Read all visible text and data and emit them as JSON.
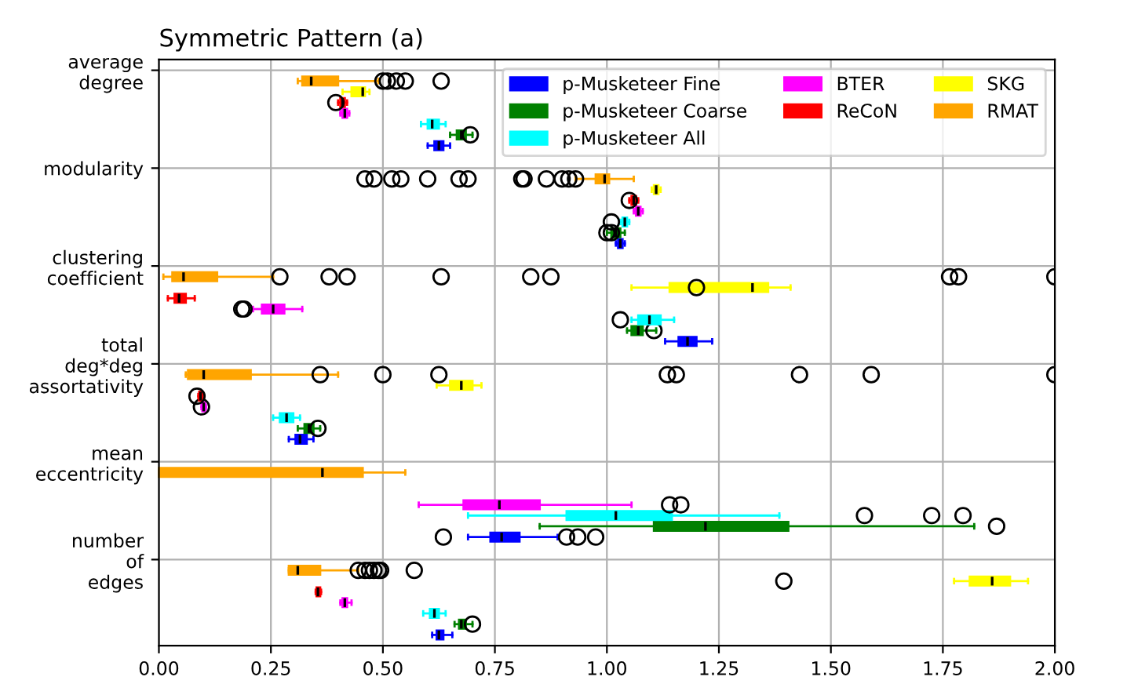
{
  "chart_data": {
    "type": "box",
    "orientation": "horizontal",
    "title": "Symmetric Pattern (a)",
    "categories": [
      "average\ndegree",
      "modularity",
      "clustering\ncoefficient",
      "total\ndeg*deg\nassortativity",
      "mean\neccentricity",
      "number\nof\nedges"
    ],
    "xlim": [
      0,
      2
    ],
    "xticks": [
      {
        "value": 0,
        "label": "0.00"
      },
      {
        "value": 0.25,
        "label": "0.25"
      },
      {
        "value": 0.5,
        "label": "0.50"
      },
      {
        "value": 0.75,
        "label": "0.75"
      },
      {
        "value": 1,
        "label": "1.00"
      },
      {
        "value": 1.25,
        "label": "1.25"
      },
      {
        "value": 1.5,
        "label": "1.50"
      },
      {
        "value": 1.75,
        "label": "1.75"
      },
      {
        "value": 2,
        "label": "2.00"
      }
    ],
    "grid": true,
    "legend": "top right",
    "series": [
      {
        "name": "p-Musketeer Fine",
        "color": "#0000ff",
        "boxes": [
          {
            "low": 0.6,
            "q1": 0.615,
            "median": 0.625,
            "q3": 0.635,
            "high": 0.65
          },
          {
            "low": 1.02,
            "q1": 1.025,
            "median": 1.03,
            "q3": 1.035,
            "high": 1.04
          },
          {
            "low": 1.13,
            "q1": 1.16,
            "median": 1.18,
            "q3": 1.2,
            "high": 1.235
          },
          {
            "low": 0.29,
            "q1": 0.305,
            "median": 0.315,
            "q3": 0.33,
            "high": 0.345
          },
          {
            "low": 0.69,
            "q1": 0.74,
            "median": 0.765,
            "q3": 0.805,
            "high": 0.89,
            "outliers": [
              0.635,
              0.91,
              0.935,
              0.975
            ]
          },
          {
            "low": 0.61,
            "q1": 0.62,
            "median": 0.625,
            "q3": 0.635,
            "high": 0.655
          }
        ]
      },
      {
        "name": "p-Musketeer Coarse",
        "color": "#008000",
        "boxes": [
          {
            "low": 0.65,
            "q1": 0.665,
            "median": 0.675,
            "q3": 0.685,
            "high": 0.7,
            "outliers": [
              0.695
            ]
          },
          {
            "low": 1.0,
            "q1": 1.01,
            "median": 1.02,
            "q3": 1.03,
            "high": 1.04,
            "outliers": [
              1.0,
              1.01
            ]
          },
          {
            "low": 1.045,
            "q1": 1.055,
            "median": 1.07,
            "q3": 1.08,
            "high": 1.11,
            "outliers": [
              1.105
            ]
          },
          {
            "low": 0.31,
            "q1": 0.325,
            "median": 0.335,
            "q3": 0.345,
            "high": 0.36,
            "outliers": [
              0.355
            ]
          },
          {
            "low": 0.85,
            "q1": 1.105,
            "median": 1.22,
            "q3": 1.405,
            "high": 1.82,
            "outliers": [
              1.87
            ]
          },
          {
            "low": 0.66,
            "q1": 0.67,
            "median": 0.675,
            "q3": 0.685,
            "high": 0.7,
            "outliers": [
              0.7
            ]
          }
        ]
      },
      {
        "name": "p-Musketeer All",
        "color": "#00ffff",
        "boxes": [
          {
            "low": 0.585,
            "q1": 0.6,
            "median": 0.61,
            "q3": 0.625,
            "high": 0.64
          },
          {
            "low": 1.03,
            "q1": 1.035,
            "median": 1.04,
            "q3": 1.045,
            "high": 1.05,
            "outliers": [
              1.01
            ]
          },
          {
            "low": 1.055,
            "q1": 1.07,
            "median": 1.095,
            "q3": 1.12,
            "high": 1.15,
            "outliers": [
              1.03
            ]
          },
          {
            "low": 0.255,
            "q1": 0.27,
            "median": 0.285,
            "q3": 0.3,
            "high": 0.315
          },
          {
            "low": 0.69,
            "q1": 0.91,
            "median": 1.02,
            "q3": 1.145,
            "high": 1.385,
            "outliers": [
              1.575,
              1.725,
              1.795
            ]
          },
          {
            "low": 0.59,
            "q1": 0.605,
            "median": 0.615,
            "q3": 0.625,
            "high": 0.64
          }
        ]
      },
      {
        "name": "BTER",
        "color": "#ff00ff",
        "boxes": [
          {
            "low": 0.405,
            "q1": 0.41,
            "median": 0.415,
            "q3": 0.42,
            "high": 0.425
          },
          {
            "low": 1.06,
            "q1": 1.065,
            "median": 1.07,
            "q3": 1.075,
            "high": 1.08
          },
          {
            "low": 0.21,
            "q1": 0.23,
            "median": 0.255,
            "q3": 0.28,
            "high": 0.32,
            "outliers": [
              0.185,
              0.19
            ]
          },
          {
            "low": 0.095,
            "q1": 0.097,
            "median": 0.1,
            "q3": 0.103,
            "high": 0.105,
            "outliers": [
              0.095
            ]
          },
          {
            "low": 0.58,
            "q1": 0.68,
            "median": 0.76,
            "q3": 0.85,
            "high": 1.055,
            "outliers": [
              1.14,
              1.165
            ]
          },
          {
            "low": 0.405,
            "q1": 0.41,
            "median": 0.415,
            "q3": 0.42,
            "high": 0.43
          }
        ]
      },
      {
        "name": "ReCoN",
        "color": "#ff0000",
        "boxes": [
          {
            "low": 0.4,
            "q1": 0.405,
            "median": 0.41,
            "q3": 0.415,
            "high": 0.42,
            "outliers": [
              0.395
            ]
          },
          {
            "low": 1.05,
            "q1": 1.055,
            "median": 1.06,
            "q3": 1.065,
            "high": 1.07,
            "outliers": [
              1.05
            ]
          },
          {
            "low": 0.02,
            "q1": 0.035,
            "median": 0.045,
            "q3": 0.06,
            "high": 0.08
          },
          {
            "low": 0.088,
            "q1": 0.09,
            "median": 0.093,
            "q3": 0.097,
            "high": 0.1,
            "outliers": [
              0.085
            ]
          },
          null,
          {
            "low": 0.35,
            "q1": 0.352,
            "median": 0.355,
            "q3": 0.36,
            "high": 0.362
          }
        ]
      },
      {
        "name": "SKG",
        "color": "#ffff00",
        "boxes": [
          {
            "low": 0.41,
            "q1": 0.43,
            "median": 0.455,
            "q3": 0.46,
            "high": 0.47
          },
          {
            "low": 1.1,
            "q1": 1.105,
            "median": 1.11,
            "q3": 1.115,
            "high": 1.12
          },
          {
            "low": 1.055,
            "q1": 1.14,
            "median": 1.325,
            "q3": 1.36,
            "high": 1.41,
            "outliers": [
              1.2
            ]
          },
          {
            "low": 0.62,
            "q1": 0.65,
            "median": 0.675,
            "q3": 0.7,
            "high": 0.72
          },
          null,
          {
            "low": 1.775,
            "q1": 1.81,
            "median": 1.86,
            "q3": 1.9,
            "high": 1.94,
            "outliers": [
              1.395
            ]
          }
        ]
      },
      {
        "name": "RMAT",
        "color": "#ffa500",
        "boxes": [
          {
            "low": 0.31,
            "q1": 0.32,
            "median": 0.34,
            "q3": 0.4,
            "high": 0.49,
            "outliers": [
              0.5,
              0.51,
              0.53,
              0.55,
              0.63
            ]
          },
          {
            "low": 0.93,
            "q1": 0.975,
            "median": 0.995,
            "q3": 1.005,
            "high": 1.06,
            "outliers": [
              0.46,
              0.48,
              0.52,
              0.54,
              0.6,
              0.67,
              0.69,
              0.81,
              0.815,
              0.865,
              0.9,
              0.915,
              0.93
            ]
          },
          {
            "low": 0.01,
            "q1": 0.03,
            "median": 0.055,
            "q3": 0.13,
            "high": 0.255,
            "outliers": [
              0.27,
              0.38,
              0.42,
              0.63,
              0.83,
              0.875,
              1.765,
              1.785,
              2.0
            ]
          },
          {
            "low": 0.06,
            "q1": 0.065,
            "median": 0.1,
            "q3": 0.205,
            "high": 0.4,
            "outliers": [
              0.36,
              0.5,
              0.625,
              1.135,
              1.155,
              1.43,
              1.59,
              2.0
            ]
          },
          {
            "low": 0.0,
            "q1": 0.0,
            "median": 0.365,
            "q3": 0.455,
            "high": 0.55
          },
          {
            "low": 0.29,
            "q1": 0.29,
            "median": 0.31,
            "q3": 0.36,
            "high": 0.445,
            "outliers": [
              0.445,
              0.46,
              0.47,
              0.48,
              0.49,
              0.495,
              0.57
            ]
          }
        ]
      }
    ]
  }
}
